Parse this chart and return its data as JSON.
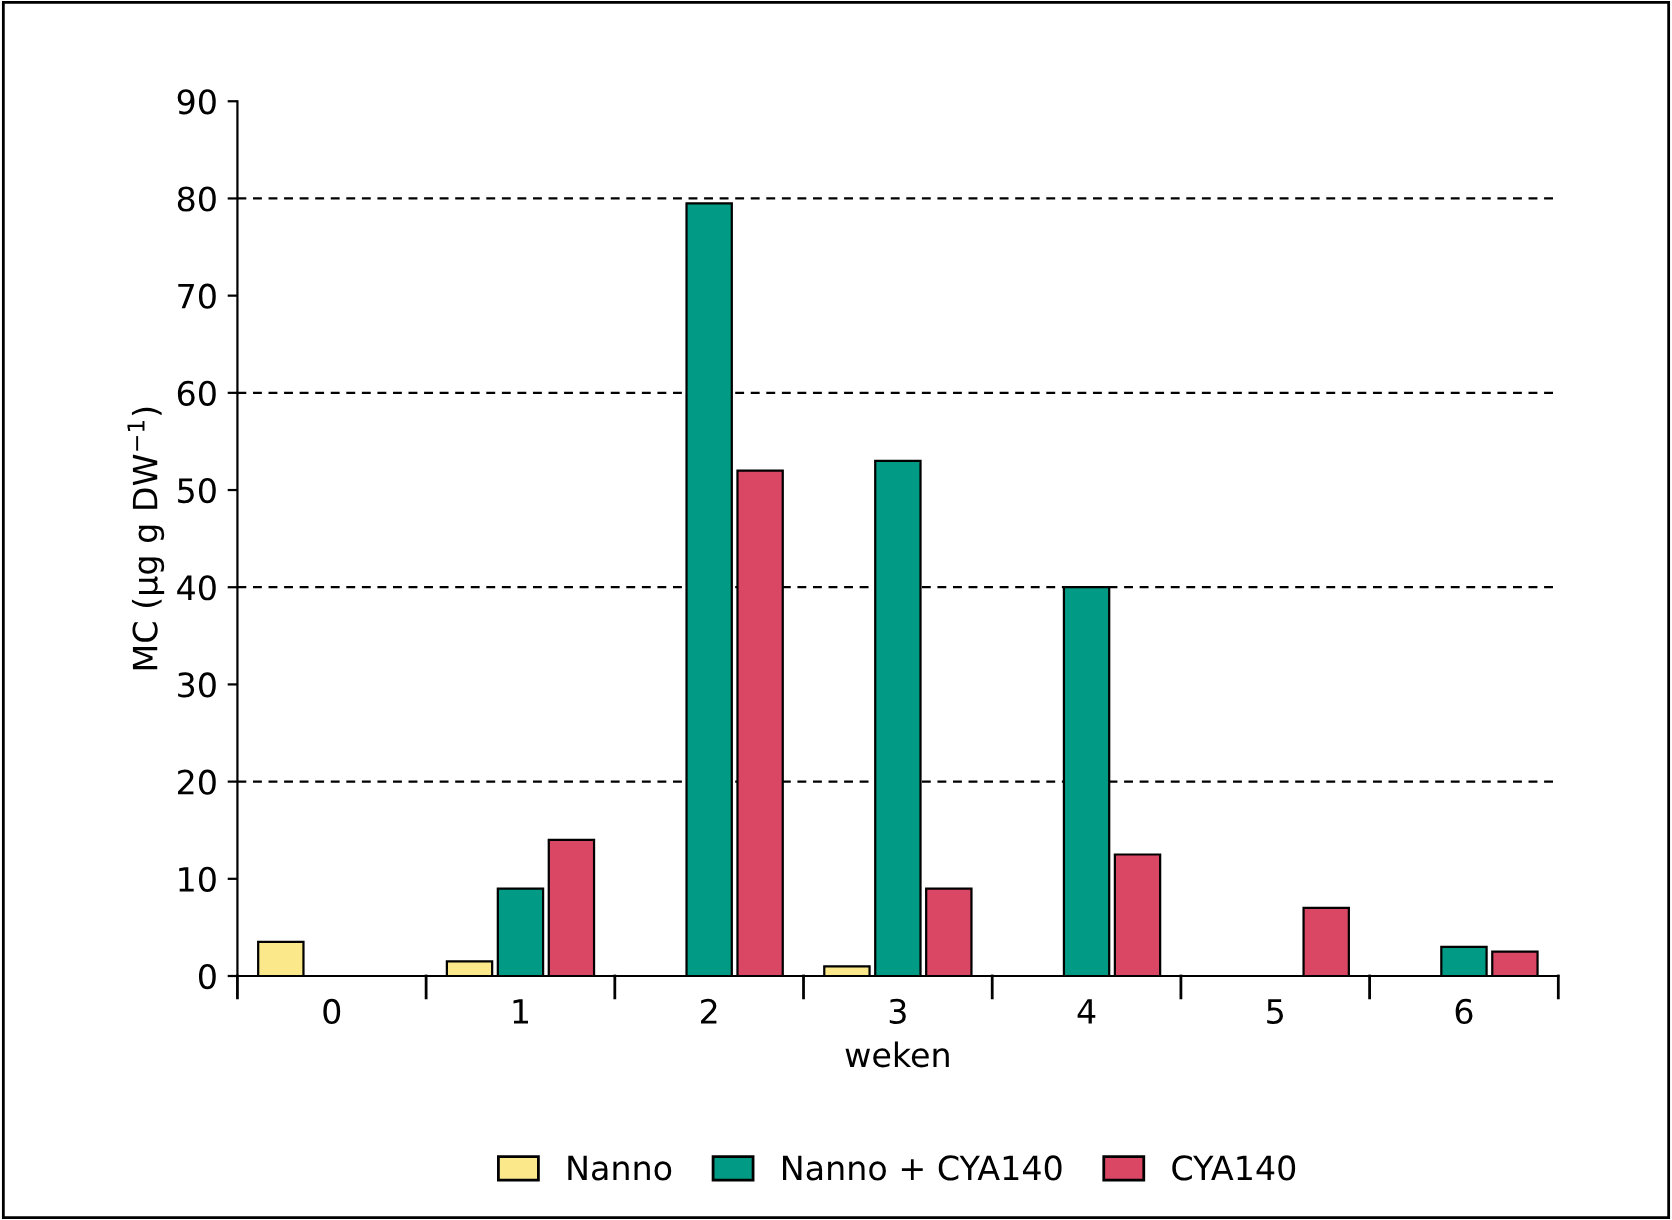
{
  "chart_data": {
    "type": "bar",
    "xlabel": "weken",
    "ylabel": "MC (µg g DW$^{−1}$)",
    "categories": [
      "0",
      "1",
      "2",
      "3",
      "4",
      "5",
      "6"
    ],
    "series": [
      {
        "name": "Nanno",
        "color": "#fbe88b",
        "values": [
          3.5,
          1.5,
          null,
          1,
          null,
          null,
          null
        ]
      },
      {
        "name": "Nanno + CYA140",
        "color": "#009a85",
        "values": [
          null,
          9,
          79.5,
          53,
          40,
          null,
          3
        ]
      },
      {
        "name": "CYA140",
        "color": "#d94764",
        "values": [
          null,
          14,
          52,
          9,
          12.5,
          7,
          2.5
        ]
      }
    ],
    "ylim": [
      0,
      90
    ],
    "yticks": [
      0,
      10,
      20,
      30,
      40,
      50,
      60,
      70,
      80,
      90
    ],
    "ref_lines": [
      {
        "axis": "y",
        "value": 20,
        "color": "#000000",
        "line_style": "dashed"
      },
      {
        "axis": "y",
        "value": 40,
        "color": "#000000",
        "line_style": "dashed"
      },
      {
        "axis": "y",
        "value": 60,
        "color": "#000000",
        "line_style": "dashed"
      },
      {
        "axis": "y",
        "value": 80,
        "color": "#000000",
        "line_style": "dashed"
      }
    ],
    "legend": "bottom"
  }
}
